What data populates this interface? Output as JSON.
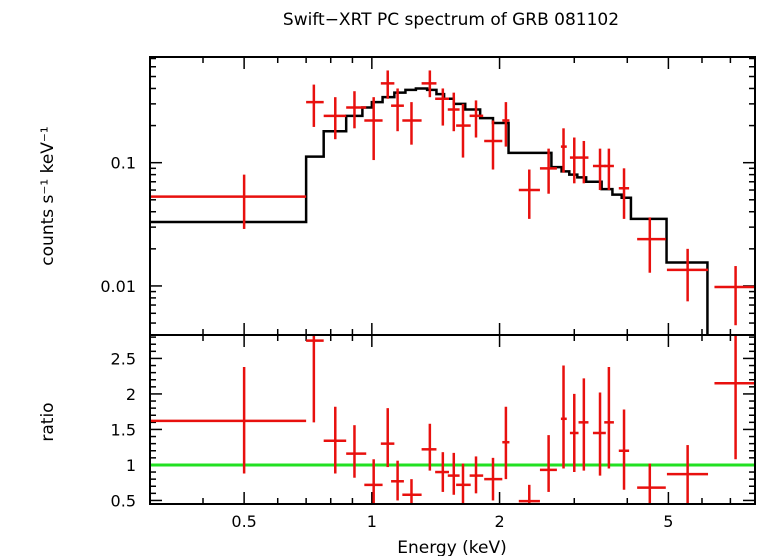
{
  "chart_data": [
    {
      "type": "scatter",
      "panel": "spectrum",
      "title": "Swift−XRT PC spectrum of GRB 081102",
      "ylabel": "counts s⁻¹ keV⁻¹",
      "xscale": "log",
      "yscale": "log",
      "xlim": [
        0.3,
        8.0
      ],
      "ylim": [
        0.004,
        0.72
      ],
      "y_ticks": [
        {
          "value": 0.01,
          "label": "0.01"
        },
        {
          "value": 0.1,
          "label": "0.1"
        }
      ],
      "series": [
        {
          "kind": "data",
          "color": "#e8100e",
          "points": [
            {
              "x": 0.5,
              "xlo": 0.3,
              "xhi": 0.7,
              "y": 0.053,
              "ylo": 0.029,
              "yhi": 0.08
            },
            {
              "x": 0.73,
              "xlo": 0.7,
              "xhi": 0.77,
              "y": 0.31,
              "ylo": 0.195,
              "yhi": 0.43
            },
            {
              "x": 0.82,
              "xlo": 0.77,
              "xhi": 0.87,
              "y": 0.24,
              "ylo": 0.155,
              "yhi": 0.34
            },
            {
              "x": 0.91,
              "xlo": 0.87,
              "xhi": 0.97,
              "y": 0.28,
              "ylo": 0.19,
              "yhi": 0.38
            },
            {
              "x": 1.01,
              "xlo": 0.96,
              "xhi": 1.06,
              "y": 0.22,
              "ylo": 0.105,
              "yhi": 0.34
            },
            {
              "x": 1.09,
              "xlo": 1.05,
              "xhi": 1.13,
              "y": 0.44,
              "ylo": 0.33,
              "yhi": 0.56
            },
            {
              "x": 1.15,
              "xlo": 1.11,
              "xhi": 1.19,
              "y": 0.29,
              "ylo": 0.18,
              "yhi": 0.4
            },
            {
              "x": 1.24,
              "xlo": 1.18,
              "xhi": 1.31,
              "y": 0.22,
              "ylo": 0.14,
              "yhi": 0.31
            },
            {
              "x": 1.37,
              "xlo": 1.31,
              "xhi": 1.42,
              "y": 0.44,
              "ylo": 0.34,
              "yhi": 0.56
            },
            {
              "x": 1.47,
              "xlo": 1.41,
              "xhi": 1.52,
              "y": 0.33,
              "ylo": 0.2,
              "yhi": 0.4
            },
            {
              "x": 1.56,
              "xlo": 1.51,
              "xhi": 1.61,
              "y": 0.27,
              "ylo": 0.18,
              "yhi": 0.37
            },
            {
              "x": 1.64,
              "xlo": 1.58,
              "xhi": 1.71,
              "y": 0.2,
              "ylo": 0.11,
              "yhi": 0.3
            },
            {
              "x": 1.76,
              "xlo": 1.7,
              "xhi": 1.83,
              "y": 0.24,
              "ylo": 0.16,
              "yhi": 0.32
            },
            {
              "x": 1.93,
              "xlo": 1.84,
              "xhi": 2.03,
              "y": 0.15,
              "ylo": 0.088,
              "yhi": 0.22
            },
            {
              "x": 2.07,
              "xlo": 2.03,
              "xhi": 2.11,
              "y": 0.22,
              "ylo": 0.135,
              "yhi": 0.31
            },
            {
              "x": 2.35,
              "xlo": 2.22,
              "xhi": 2.49,
              "y": 0.06,
              "ylo": 0.035,
              "yhi": 0.088
            },
            {
              "x": 2.61,
              "xlo": 2.49,
              "xhi": 2.73,
              "y": 0.09,
              "ylo": 0.056,
              "yhi": 0.13
            },
            {
              "x": 2.83,
              "xlo": 2.79,
              "xhi": 2.88,
              "y": 0.135,
              "ylo": 0.083,
              "yhi": 0.19
            },
            {
              "x": 3.0,
              "xlo": 2.93,
              "xhi": 3.07,
              "y": 0.11,
              "ylo": 0.068,
              "yhi": 0.16
            },
            {
              "x": 3.16,
              "xlo": 3.07,
              "xhi": 3.24,
              "y": 0.11,
              "ylo": 0.068,
              "yhi": 0.15
            },
            {
              "x": 3.45,
              "xlo": 3.32,
              "xhi": 3.56,
              "y": 0.094,
              "ylo": 0.06,
              "yhi": 0.13
            },
            {
              "x": 3.62,
              "xlo": 3.53,
              "xhi": 3.72,
              "y": 0.094,
              "ylo": 0.06,
              "yhi": 0.13
            },
            {
              "x": 3.93,
              "xlo": 3.82,
              "xhi": 4.04,
              "y": 0.062,
              "ylo": 0.035,
              "yhi": 0.09
            },
            {
              "x": 4.52,
              "xlo": 4.22,
              "xhi": 4.93,
              "y": 0.024,
              "ylo": 0.0128,
              "yhi": 0.036
            },
            {
              "x": 5.55,
              "xlo": 4.96,
              "xhi": 6.2,
              "y": 0.0135,
              "ylo": 0.0075,
              "yhi": 0.02
            },
            {
              "x": 7.2,
              "xlo": 6.42,
              "xhi": 8.0,
              "y": 0.0098,
              "ylo": 0.0048,
              "yhi": 0.0145
            }
          ]
        },
        {
          "kind": "model",
          "color": "#000000",
          "step_edges": [
            0.3,
            0.7,
            0.77,
            0.87,
            0.95,
            1.0,
            1.06,
            1.13,
            1.2,
            1.27,
            1.35,
            1.42,
            1.48,
            1.56,
            1.66,
            1.8,
            1.93,
            2.1,
            2.48,
            2.65,
            2.8,
            2.92,
            3.05,
            3.2,
            3.48,
            3.69,
            3.88,
            4.08,
            4.95,
            6.18
          ],
          "step_values": [
            0.033,
            0.112,
            0.18,
            0.24,
            0.28,
            0.31,
            0.34,
            0.37,
            0.39,
            0.4,
            0.39,
            0.36,
            0.33,
            0.3,
            0.27,
            0.23,
            0.21,
            0.12,
            0.12,
            0.092,
            0.085,
            0.08,
            0.076,
            0.07,
            0.061,
            0.055,
            0.052,
            0.035,
            0.0155
          ],
          "drop_to_floor_after": 6.18
        }
      ]
    },
    {
      "type": "scatter",
      "panel": "ratio",
      "xlabel": "Energy (keV)",
      "ylabel": "ratio",
      "xscale": "log",
      "xlim": [
        0.3,
        8.0
      ],
      "ylim": [
        0.45,
        2.83
      ],
      "x_ticks": [
        {
          "value": 0.5,
          "label": "0.5"
        },
        {
          "value": 1,
          "label": "1"
        },
        {
          "value": 2,
          "label": "2"
        },
        {
          "value": 5,
          "label": "5"
        }
      ],
      "y_ticks": [
        {
          "value": 0.5,
          "label": "0.5"
        },
        {
          "value": 1,
          "label": "1"
        },
        {
          "value": 1.5,
          "label": "1.5"
        },
        {
          "value": 2,
          "label": "2"
        },
        {
          "value": 2.5,
          "label": "2.5"
        }
      ],
      "reference_line": {
        "y": 1,
        "color": "#22e022"
      },
      "series": [
        {
          "kind": "ratio",
          "color": "#e8100e",
          "points": [
            {
              "x": 0.5,
              "xlo": 0.3,
              "xhi": 0.7,
              "y": 1.62,
              "ylo": 0.88,
              "yhi": 2.38
            },
            {
              "x": 0.73,
              "xlo": 0.7,
              "xhi": 0.77,
              "y": 2.75,
              "ylo": 1.6,
              "yhi": 2.83
            },
            {
              "x": 0.82,
              "xlo": 0.77,
              "xhi": 0.87,
              "y": 1.34,
              "ylo": 0.88,
              "yhi": 1.82
            },
            {
              "x": 0.91,
              "xlo": 0.87,
              "xhi": 0.97,
              "y": 1.16,
              "ylo": 0.82,
              "yhi": 1.56
            },
            {
              "x": 1.01,
              "xlo": 0.96,
              "xhi": 1.06,
              "y": 0.72,
              "ylo": 0.45,
              "yhi": 1.08
            },
            {
              "x": 1.09,
              "xlo": 1.05,
              "xhi": 1.13,
              "y": 1.3,
              "ylo": 0.97,
              "yhi": 1.8
            },
            {
              "x": 1.15,
              "xlo": 1.11,
              "xhi": 1.19,
              "y": 0.77,
              "ylo": 0.5,
              "yhi": 1.06
            },
            {
              "x": 1.24,
              "xlo": 1.18,
              "xhi": 1.31,
              "y": 0.58,
              "ylo": 0.45,
              "yhi": 0.8
            },
            {
              "x": 1.37,
              "xlo": 1.31,
              "xhi": 1.42,
              "y": 1.22,
              "ylo": 0.92,
              "yhi": 1.58
            },
            {
              "x": 1.47,
              "xlo": 1.41,
              "xhi": 1.52,
              "y": 0.9,
              "ylo": 0.62,
              "yhi": 1.18
            },
            {
              "x": 1.56,
              "xlo": 1.51,
              "xhi": 1.61,
              "y": 0.85,
              "ylo": 0.58,
              "yhi": 1.17
            },
            {
              "x": 1.64,
              "xlo": 1.58,
              "xhi": 1.71,
              "y": 0.72,
              "ylo": 0.45,
              "yhi": 1.02
            },
            {
              "x": 1.76,
              "xlo": 1.7,
              "xhi": 1.83,
              "y": 0.85,
              "ylo": 0.6,
              "yhi": 1.12
            },
            {
              "x": 1.93,
              "xlo": 1.84,
              "xhi": 2.03,
              "y": 0.8,
              "ylo": 0.5,
              "yhi": 1.1
            },
            {
              "x": 2.07,
              "xlo": 2.03,
              "xhi": 2.11,
              "y": 1.32,
              "ylo": 0.8,
              "yhi": 1.82
            },
            {
              "x": 2.35,
              "xlo": 2.22,
              "xhi": 2.49,
              "y": 0.49,
              "ylo": 0.45,
              "yhi": 0.72
            },
            {
              "x": 2.61,
              "xlo": 2.49,
              "xhi": 2.73,
              "y": 0.93,
              "ylo": 0.62,
              "yhi": 1.42
            },
            {
              "x": 2.83,
              "xlo": 2.79,
              "xhi": 2.88,
              "y": 1.65,
              "ylo": 0.95,
              "yhi": 2.4
            },
            {
              "x": 3.0,
              "xlo": 2.93,
              "xhi": 3.07,
              "y": 1.45,
              "ylo": 0.9,
              "yhi": 2.0
            },
            {
              "x": 3.16,
              "xlo": 3.07,
              "xhi": 3.24,
              "y": 1.6,
              "ylo": 0.92,
              "yhi": 2.22
            },
            {
              "x": 3.45,
              "xlo": 3.32,
              "xhi": 3.56,
              "y": 1.45,
              "ylo": 0.85,
              "yhi": 2.02
            },
            {
              "x": 3.62,
              "xlo": 3.53,
              "xhi": 3.72,
              "y": 1.6,
              "ylo": 0.95,
              "yhi": 2.38
            },
            {
              "x": 3.93,
              "xlo": 3.82,
              "xhi": 4.04,
              "y": 1.2,
              "ylo": 0.65,
              "yhi": 1.78
            },
            {
              "x": 4.52,
              "xlo": 4.22,
              "xhi": 4.93,
              "y": 0.68,
              "ylo": 0.45,
              "yhi": 1.02
            },
            {
              "x": 5.55,
              "xlo": 4.96,
              "xhi": 6.2,
              "y": 0.87,
              "ylo": 0.45,
              "yhi": 1.28
            },
            {
              "x": 7.2,
              "xlo": 6.42,
              "xhi": 8.0,
              "y": 2.15,
              "ylo": 1.08,
              "yhi": 2.83
            }
          ]
        }
      ]
    }
  ]
}
